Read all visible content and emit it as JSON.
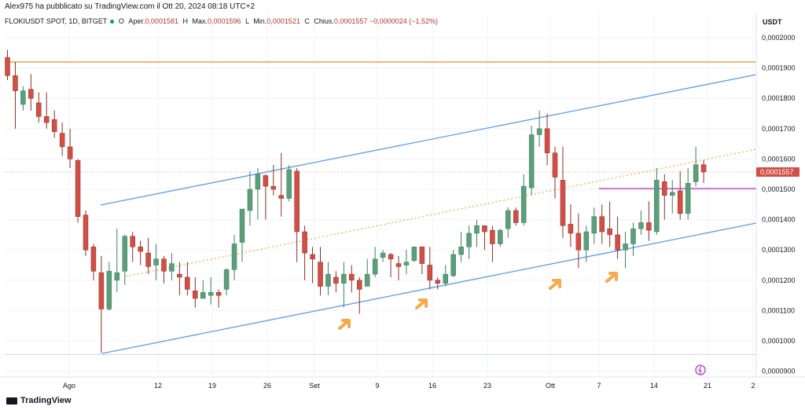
{
  "header": {
    "publisher_line": "Alex975 ha pubblicato su TradingView.com il Ott 20, 2024 08:18 UTC+2",
    "symbol_line": "FLOKIUSDT SPOT, 1D, BITGET",
    "open_label": "O",
    "open_text": "Aper.",
    "open_value": "0,0001581",
    "high_label": "H",
    "high_text": "Max.",
    "high_value": "0,0001596",
    "low_label": "L",
    "low_text": "Min.",
    "low_value": "0,0001521",
    "close_label": "C",
    "close_text": "Chius.",
    "close_value": "0,0001557",
    "change_value": "−0,0000024 (−1,52%)"
  },
  "price_axis": {
    "currency": "USDT",
    "current_price_label": "0,0001557",
    "colors": {
      "up": "#5b9e7a",
      "down": "#d24f45",
      "channel": "#5b9bf0",
      "resistance": "#f0a040",
      "level": "#cc55cc",
      "arrow": "#f5a94a"
    }
  },
  "footer": {
    "brand": "TradingView"
  },
  "chart_data": {
    "type": "candlestick",
    "symbol": "FLOKIUSDT SPOT",
    "timeframe": "1D",
    "exchange": "BITGET",
    "y_ticks": [
      "0,0002000",
      "0,0001900",
      "0,0001800",
      "0,0001700",
      "0,0001600",
      "0,0001500",
      "0,0001400",
      "0,0001300",
      "0,0001200",
      "0,0001100",
      "0,0001000",
      "0,0000900"
    ],
    "x_ticks": [
      "Ago",
      "12",
      "19",
      "26",
      "Set",
      "9",
      "16",
      "23",
      "Ott",
      "7",
      "14",
      "21",
      "2"
    ],
    "ylim": [
      8.7e-05,
      0.000207
    ],
    "candles": [
      [
        0.0001935,
        0.0001875,
        0.000196,
        0.000186
      ],
      [
        0.0001875,
        0.0001825,
        0.000192,
        0.00017
      ],
      [
        0.000178,
        0.0001825,
        0.000184,
        0.000176
      ],
      [
        0.000183,
        0.00018,
        0.000188,
        0.000176
      ],
      [
        0.0001785,
        0.000174,
        0.000182,
        0.000172
      ],
      [
        0.000174,
        0.000172,
        0.000182,
        0.00017
      ],
      [
        0.000173,
        0.000169,
        0.000176,
        0.000167
      ],
      [
        0.0001685,
        0.000164,
        0.000172,
        0.000161
      ],
      [
        0.000164,
        0.00016,
        0.00017,
        0.000157
      ],
      [
        0.0001595,
        0.000141,
        0.00016,
        0.000139
      ],
      [
        0.0001415,
        0.00013,
        0.000143,
        0.000128
      ],
      [
        0.000131,
        0.000123,
        0.000132,
        0.00012
      ],
      [
        0.0001225,
        0.0001105,
        0.000128,
        9.6e-05
      ],
      [
        0.0001105,
        0.000123,
        0.000126,
        0.00011
      ],
      [
        0.00012,
        0.0001225,
        0.000137,
        0.000116
      ],
      [
        0.000123,
        0.0001345,
        0.000135,
        0.0001185
      ],
      [
        0.0001345,
        0.000131,
        0.000136,
        0.000126
      ],
      [
        0.000131,
        0.0001295,
        0.000133,
        0.000125
      ],
      [
        0.000129,
        0.0001245,
        0.000134,
        0.000122
      ],
      [
        0.000125,
        0.000127,
        0.000132,
        0.00012
      ],
      [
        0.000127,
        0.000123,
        0.000128,
        0.000119
      ],
      [
        0.000123,
        0.0001255,
        0.000129,
        0.00012
      ],
      [
        0.000122,
        0.000121,
        0.000126,
        0.000115
      ],
      [
        0.000121,
        0.000117,
        0.000126,
        0.000115
      ],
      [
        0.0001165,
        0.000114,
        0.000121,
        0.000111
      ],
      [
        0.000114,
        0.000116,
        0.00012,
        0.000114
      ],
      [
        0.000115,
        0.000116,
        0.000121,
        0.000112
      ],
      [
        0.000116,
        0.000115,
        0.000117,
        0.000111
      ],
      [
        0.000117,
        0.0001235,
        0.000124,
        0.000115
      ],
      [
        0.0001235,
        0.000132,
        0.000135,
        0.00012
      ],
      [
        0.0001325,
        0.0001435,
        0.000141,
        0.000126
      ],
      [
        0.000143,
        0.00015,
        0.000156,
        0.000138
      ],
      [
        0.00015,
        0.000155,
        0.000157,
        0.00014
      ],
      [
        0.0001545,
        0.000151,
        0.000155,
        0.00014
      ],
      [
        0.000151,
        0.00015,
        0.000158,
        0.000148
      ],
      [
        0.000148,
        0.000147,
        0.000162,
        0.000141
      ],
      [
        0.000147,
        0.0001565,
        0.000158,
        0.000146
      ],
      [
        0.000156,
        0.000136,
        0.000157,
        0.000126
      ],
      [
        0.000136,
        0.000129,
        0.000138,
        0.00012
      ],
      [
        0.0001285,
        0.000127,
        0.000131,
        0.000119
      ],
      [
        0.000126,
        0.000118,
        0.000131,
        0.000115
      ],
      [
        0.000118,
        0.000122,
        0.000126,
        0.000115
      ],
      [
        0.000121,
        0.000119,
        0.000123,
        0.000116
      ],
      [
        0.000119,
        0.000122,
        0.000126,
        0.000111
      ],
      [
        0.000122,
        0.00012,
        0.000125,
        0.000116
      ],
      [
        0.00012,
        0.000117,
        0.000121,
        0.000109
      ],
      [
        0.000118,
        0.000122,
        0.000127,
        0.000118
      ],
      [
        0.000122,
        0.000127,
        0.000131,
        0.000121
      ],
      [
        0.0001275,
        0.000129,
        0.00013,
        0.000126
      ],
      [
        0.0001285,
        0.000127,
        0.000129,
        0.000121
      ],
      [
        0.0001255,
        0.0001245,
        0.000128,
        0.00012
      ],
      [
        0.000125,
        0.000126,
        0.00013,
        0.000122
      ],
      [
        0.0001265,
        0.000131,
        0.000131,
        0.000126
      ],
      [
        0.000131,
        0.0001255,
        0.000131,
        0.000122
      ],
      [
        0.000125,
        0.00012,
        0.000131,
        0.000117
      ],
      [
        0.00012,
        0.000119,
        0.000121,
        0.000117
      ],
      [
        0.000119,
        0.000122,
        0.000125,
        0.000118
      ],
      [
        0.0001215,
        0.0001285,
        0.00013,
        0.000121
      ],
      [
        0.0001285,
        0.000131,
        0.000136,
        0.000126
      ],
      [
        0.000131,
        0.0001355,
        0.000138,
        0.000127
      ],
      [
        0.0001355,
        0.000138,
        0.00014,
        0.000131
      ],
      [
        0.000138,
        0.000136,
        0.000138,
        0.00013
      ],
      [
        0.0001365,
        0.000132,
        0.000138,
        0.000126
      ],
      [
        0.000132,
        0.0001365,
        0.000137,
        0.000131
      ],
      [
        0.000137,
        0.000143,
        0.000144,
        0.000134
      ],
      [
        0.000143,
        0.000139,
        0.000144,
        0.000138
      ],
      [
        0.000139,
        0.000151,
        0.000155,
        0.000138
      ],
      [
        0.0001505,
        0.000168,
        0.000171,
        0.000148
      ],
      [
        0.000168,
        0.00017,
        0.000176,
        0.000164
      ],
      [
        0.00017,
        0.000162,
        0.000175,
        0.000158
      ],
      [
        0.000162,
        0.000154,
        0.000164,
        0.000147
      ],
      [
        0.000153,
        0.000138,
        0.000164,
        0.000134
      ],
      [
        0.0001385,
        0.0001355,
        0.000145,
        0.000131
      ],
      [
        0.0001355,
        0.00013,
        0.000142,
        0.000124
      ],
      [
        0.00013,
        0.000136,
        0.000138,
        0.000126
      ],
      [
        0.0001355,
        0.000141,
        0.000144,
        0.000132
      ],
      [
        0.000141,
        0.000136,
        0.000145,
        0.000132
      ],
      [
        0.000137,
        0.000135,
        0.000146,
        0.000131
      ],
      [
        0.000135,
        0.00013,
        0.000141,
        0.000127
      ],
      [
        0.00013,
        0.000132,
        0.000136,
        0.000124
      ],
      [
        0.000132,
        0.000137,
        0.000139,
        0.000128
      ],
      [
        0.000137,
        0.000139,
        0.000143,
        0.000135
      ],
      [
        0.000139,
        0.0001365,
        0.000146,
        0.000133
      ],
      [
        0.000136,
        0.000153,
        0.000157,
        0.000135
      ],
      [
        0.0001525,
        0.000148,
        0.000155,
        0.00014
      ],
      [
        0.000148,
        0.000149,
        0.000153,
        0.000142
      ],
      [
        0.0001495,
        0.000142,
        0.000156,
        0.00014
      ],
      [
        0.000142,
        0.000152,
        0.000157,
        0.00014
      ],
      [
        0.0001525,
        0.0001581,
        0.000164,
        0.000151
      ],
      [
        0.0001581,
        0.0001557,
        0.0001596,
        0.0001521
      ]
    ],
    "annotations": {
      "resistance_level": 0.000192,
      "support_level": 9.55e-05,
      "magenta_level": 0.0001502,
      "current_price": 0.0001557
    }
  }
}
